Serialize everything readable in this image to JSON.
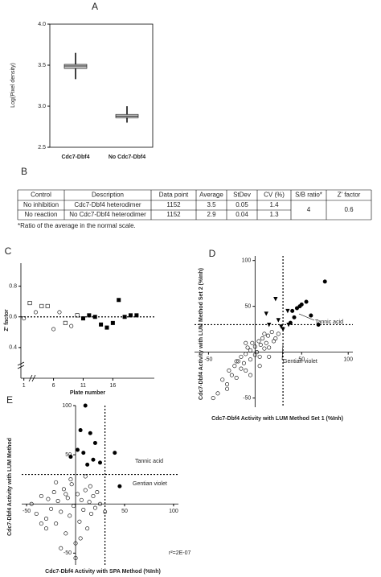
{
  "chart_data": [
    {
      "panel": "A",
      "type": "box",
      "ylabel": "Log(Pixel density)",
      "categories": [
        "Cdc7-Dbf4",
        "No Cdc7-Dbf4"
      ],
      "boxes": [
        {
          "min": 3.33,
          "q1": 3.46,
          "median": 3.49,
          "q3": 3.51,
          "max": 3.65
        },
        {
          "min": 2.8,
          "q1": 2.86,
          "median": 2.88,
          "q3": 2.9,
          "max": 3.0
        }
      ],
      "color": "#c8c8c8",
      "ylim": [
        2.5,
        4.0
      ],
      "yticks": [
        2.5,
        {
          "value": 3,
          "label": "3.0"
        },
        3.5,
        {
          "value": 4,
          "label": "4.0"
        }
      ]
    },
    {
      "panel": "C",
      "type": "scatter",
      "xlabel": "Plate number",
      "ylabel": "Z' factor",
      "xlim": [
        0.5,
        23
      ],
      "ylim": [
        0.2,
        0.95
      ],
      "xticks": [
        1,
        6,
        11,
        16
      ],
      "yticks": [
        0.4,
        0.6,
        0.8
      ],
      "threshold_y": 0.6,
      "series": [
        {
          "marker": "circle",
          "filled": false,
          "x": [
            1,
            3,
            6,
            7,
            9
          ],
          "values": [
            0.59,
            0.63,
            0.52,
            0.63,
            0.54
          ]
        },
        {
          "marker": "square",
          "filled": false,
          "x": [
            2,
            4,
            5,
            8,
            10
          ],
          "values": [
            0.69,
            0.67,
            0.67,
            0.56,
            0.61
          ]
        },
        {
          "marker": "square",
          "filled": true,
          "x": [
            11,
            12,
            13,
            14,
            15,
            16,
            17,
            18,
            19,
            20
          ],
          "values": [
            0.59,
            0.61,
            0.6,
            0.55,
            0.53,
            0.56,
            0.71,
            0.6,
            0.61,
            0.61
          ]
        }
      ]
    },
    {
      "panel": "D",
      "type": "scatter",
      "crossed": true,
      "xlabel": "Cdc7-Dbf4 Activity with LUM Method Set 1 (%Inh)",
      "ylabel": "Cdc7-Dbf4 Activity with LUM Method Set 2 (%Inh)",
      "xlim": [
        -65,
        105
      ],
      "ylim": [
        -60,
        105
      ],
      "xticks": [
        -50,
        50,
        100
      ],
      "yticks": [
        -50,
        50,
        100
      ],
      "threshold_x": 30,
      "threshold_y": 30,
      "annotations": [
        "Tannic acid",
        "Gentian violet"
      ],
      "series": [
        {
          "marker": "circle",
          "filled": false,
          "x": [
            -40,
            -35,
            -30,
            -28,
            -25,
            -22,
            -20,
            -18,
            -15,
            -15,
            -12,
            -10,
            -10,
            -8,
            -5,
            -5,
            -3,
            0,
            0,
            2,
            4,
            5,
            6,
            8,
            10,
            10,
            12,
            14,
            15,
            18,
            20,
            22,
            -45,
            -30,
            -20,
            -5,
            5,
            15,
            25,
            -10
          ],
          "values": [
            -45,
            -30,
            -35,
            -20,
            -25,
            -15,
            -28,
            -10,
            -18,
            -5,
            -12,
            -2,
            -20,
            5,
            -8,
            2,
            10,
            -3,
            6,
            0,
            12,
            -5,
            8,
            15,
            4,
            20,
            10,
            18,
            5,
            22,
            12,
            15,
            -50,
            -40,
            -10,
            -25,
            -15,
            -5,
            20,
            10
          ]
        },
        {
          "marker": "triangle",
          "filled": true,
          "x": [
            22,
            35,
            12,
            15,
            25,
            28,
            36,
            30
          ],
          "values": [
            58,
            45,
            42,
            30,
            35,
            28,
            30,
            25
          ]
        },
        {
          "marker": "circle",
          "filled": true,
          "x": [
            75,
            55,
            50,
            48,
            45,
            60,
            42,
            38,
            68,
            40
          ],
          "values": [
            77,
            55,
            52,
            50,
            48,
            40,
            38,
            32,
            30,
            45
          ]
        }
      ]
    },
    {
      "panel": "E",
      "type": "scatter",
      "crossed": true,
      "xlabel": "Cdc7-Dbf4 Activity with SPA Method (%Inh)",
      "ylabel": "Cdc7-Dbf4 Activity with LUM Method",
      "xlim": [
        -55,
        105
      ],
      "ylim": [
        -62,
        100
      ],
      "xticks": [
        -50,
        50,
        100
      ],
      "yticks": [
        -50,
        50,
        100
      ],
      "threshold_x": 30,
      "threshold_y": 30,
      "annotations": [
        "Tannic acid",
        "Gentian violet",
        "r²=2E-07"
      ],
      "series": [
        {
          "marker": "circle",
          "filled": false,
          "x": [
            -45,
            -40,
            -35,
            -30,
            -28,
            -25,
            -22,
            -20,
            -18,
            -15,
            -12,
            -10,
            -8,
            -6,
            -4,
            -2,
            0,
            2,
            4,
            6,
            8,
            10,
            12,
            14,
            16,
            18,
            20,
            22,
            25,
            -30,
            -15,
            -5,
            5,
            15,
            -20,
            0,
            10,
            -10,
            30,
            -35
          ],
          "values": [
            0,
            -10,
            8,
            -15,
            5,
            -5,
            12,
            -20,
            3,
            -8,
            15,
            -30,
            6,
            -12,
            20,
            -2,
            -40,
            10,
            -18,
            4,
            -6,
            14,
            -25,
            2,
            -10,
            8,
            -4,
            12,
            0,
            -25,
            -45,
            25,
            -35,
            18,
            22,
            -55,
            28,
            10,
            -8,
            -20
          ]
        },
        {
          "marker": "circle",
          "filled": true,
          "x": [
            10,
            5,
            15,
            20,
            2,
            8,
            -5,
            18,
            25,
            12,
            40,
            45
          ],
          "values": [
            100,
            75,
            72,
            62,
            55,
            52,
            48,
            45,
            42,
            40,
            52,
            18
          ]
        }
      ]
    }
  ],
  "table": {
    "panel": "B",
    "header": [
      "Control",
      "Description",
      "Data point",
      "Average",
      "StDev",
      "CV (%)",
      "S/B ratio*",
      "Z' factor"
    ],
    "rows": [
      [
        "No inhibition",
        "Cdc7-Dbf4 heterodimer",
        "1152",
        "3.5",
        "0.05",
        "1.4",
        "4",
        "0.6"
      ],
      [
        "No reaction",
        "No Cdc7-Dbf4 heterodimer",
        "1152",
        "2.9",
        "0.04",
        "1.3"
      ]
    ],
    "footnote": "*Ratio of the average in the normal scale."
  }
}
